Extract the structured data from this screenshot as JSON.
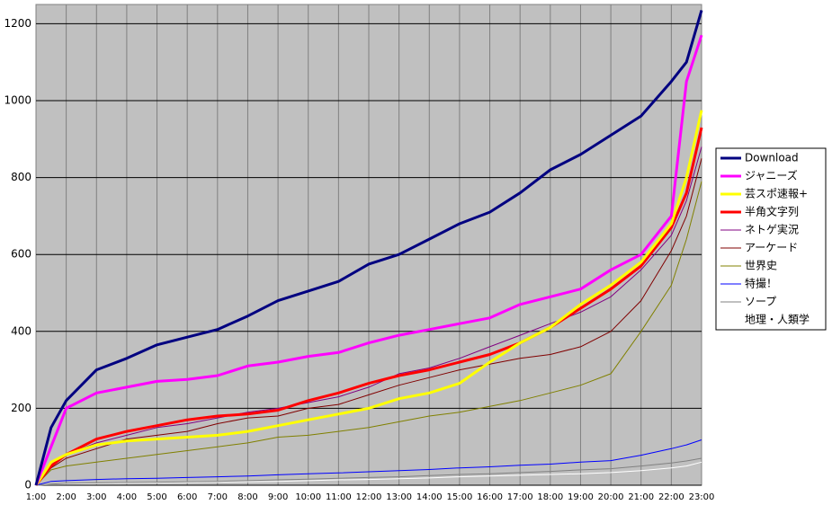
{
  "chart_data": {
    "type": "line",
    "x": [
      1,
      1.5,
      2,
      3,
      4,
      5,
      6,
      7,
      8,
      9,
      10,
      11,
      12,
      13,
      14,
      15,
      16,
      17,
      18,
      19,
      20,
      21,
      22,
      22.5,
      23
    ],
    "xlim": [
      1,
      23
    ],
    "xticks": [
      {
        "value": 1,
        "label": "1:00"
      },
      {
        "value": 2,
        "label": "2:00"
      },
      {
        "value": 3,
        "label": "3:00"
      },
      {
        "value": 4,
        "label": "4:00"
      },
      {
        "value": 5,
        "label": "5:00"
      },
      {
        "value": 6,
        "label": "6:00"
      },
      {
        "value": 7,
        "label": "7:00"
      },
      {
        "value": 8,
        "label": "8:00"
      },
      {
        "value": 9,
        "label": "9:00"
      },
      {
        "value": 10,
        "label": "10:00"
      },
      {
        "value": 11,
        "label": "11:00"
      },
      {
        "value": 12,
        "label": "12:00"
      },
      {
        "value": 13,
        "label": "13:00"
      },
      {
        "value": 14,
        "label": "14:00"
      },
      {
        "value": 15,
        "label": "15:00"
      },
      {
        "value": 16,
        "label": "16:00"
      },
      {
        "value": 17,
        "label": "17:00"
      },
      {
        "value": 18,
        "label": "18:00"
      },
      {
        "value": 19,
        "label": "19:00"
      },
      {
        "value": 20,
        "label": "20:00"
      },
      {
        "value": 21,
        "label": "21:00"
      },
      {
        "value": 22,
        "label": "22:00"
      },
      {
        "value": 23,
        "label": "23:00"
      }
    ],
    "ylim": [
      0,
      1250
    ],
    "yticks": [
      0,
      200,
      400,
      600,
      800,
      1000,
      1200
    ],
    "grid": true,
    "legend": "right",
    "series": [
      {
        "name": "Download",
        "color": "#000080",
        "values": [
          0,
          150,
          220,
          300,
          330,
          365,
          385,
          405,
          440,
          480,
          505,
          530,
          575,
          600,
          640,
          680,
          710,
          760,
          820,
          860,
          910,
          960,
          1050,
          1100,
          1235
        ]
      },
      {
        "name": "ジャニーズ",
        "color": "#ff00ff",
        "values": [
          0,
          100,
          200,
          240,
          255,
          270,
          275,
          285,
          310,
          320,
          335,
          345,
          370,
          390,
          405,
          420,
          435,
          470,
          490,
          510,
          560,
          600,
          700,
          1050,
          1170
        ]
      },
      {
        "name": "芸スポ速報+",
        "color": "#ffff00",
        "values": [
          0,
          60,
          80,
          105,
          115,
          120,
          125,
          130,
          140,
          155,
          170,
          185,
          200,
          225,
          240,
          265,
          320,
          370,
          410,
          470,
          520,
          580,
          680,
          800,
          975
        ]
      },
      {
        "name": "半角文字列",
        "color": "#ff0000",
        "values": [
          0,
          50,
          80,
          120,
          140,
          155,
          170,
          180,
          185,
          195,
          220,
          240,
          265,
          285,
          300,
          320,
          340,
          370,
          410,
          460,
          510,
          570,
          670,
          760,
          930
        ]
      },
      {
        "name": "ネトゲ実況",
        "color": "#800080",
        "values": [
          0,
          50,
          80,
          110,
          130,
          150,
          160,
          175,
          190,
          200,
          215,
          230,
          255,
          290,
          305,
          330,
          360,
          390,
          420,
          450,
          490,
          560,
          650,
          740,
          880
        ]
      },
      {
        "name": "アーケード",
        "color": "#800000",
        "values": [
          0,
          45,
          70,
          95,
          120,
          130,
          140,
          160,
          175,
          180,
          200,
          210,
          235,
          260,
          280,
          300,
          315,
          330,
          340,
          360,
          400,
          480,
          610,
          700,
          850
        ]
      },
      {
        "name": "世界史",
        "color": "#808000",
        "values": [
          0,
          40,
          50,
          60,
          70,
          80,
          90,
          100,
          110,
          125,
          130,
          140,
          150,
          165,
          180,
          190,
          205,
          220,
          240,
          260,
          290,
          400,
          520,
          640,
          790
        ]
      },
      {
        "name": "特撮！",
        "color": "#0000ff",
        "values": [
          0,
          10,
          12,
          15,
          17,
          18,
          20,
          22,
          24,
          27,
          30,
          32,
          35,
          38,
          41,
          45,
          48,
          52,
          55,
          60,
          64,
          78,
          95,
          105,
          118
        ]
      },
      {
        "name": "ソープ",
        "color": "#808080",
        "values": [
          0,
          3,
          5,
          6,
          7,
          8,
          9,
          10,
          12,
          14,
          16,
          18,
          20,
          22,
          25,
          28,
          30,
          33,
          36,
          40,
          43,
          50,
          58,
          63,
          70
        ]
      },
      {
        "name": "地理・人類学",
        "color": "#ffffff",
        "values": [
          0,
          2,
          3,
          4,
          5,
          6,
          7,
          8,
          9,
          10,
          12,
          14,
          15,
          17,
          19,
          22,
          24,
          26,
          28,
          30,
          33,
          38,
          45,
          50,
          60
        ]
      }
    ]
  }
}
